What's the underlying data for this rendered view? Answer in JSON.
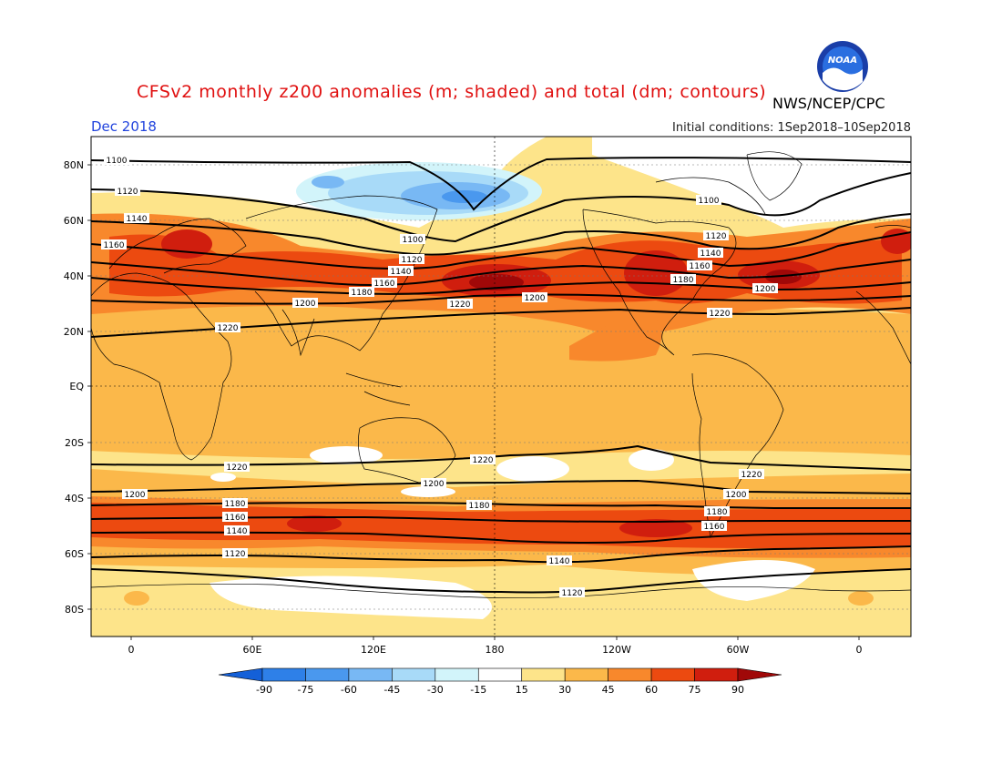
{
  "title": "CFSv2 monthly z200 anomalies (m; shaded) and total (dm; contours)",
  "agency": "NWS/NCEP/CPC",
  "logo_text": "NOAA",
  "month": "Dec 2018",
  "initial_conditions": "Initial conditions: 1Sep2018–10Sep2018",
  "lat_labels": [
    "80N",
    "60N",
    "40N",
    "20N",
    "EQ",
    "20S",
    "40S",
    "60S",
    "80S"
  ],
  "lon_labels": [
    "0",
    "60E",
    "120E",
    "180",
    "120W",
    "60W",
    "0"
  ],
  "colorbar": {
    "labels": [
      "-90",
      "-75",
      "-60",
      "-45",
      "-30",
      "-15",
      "15",
      "30",
      "45",
      "60",
      "75",
      "90"
    ],
    "colors": [
      "#1460d8",
      "#2e80e8",
      "#4a98ee",
      "#78b8f4",
      "#a8daf8",
      "#d2f4fa",
      "#ffffff",
      "#fde48a",
      "#fbb84a",
      "#f8882c",
      "#ec4a10",
      "#d01e0e",
      "#a00808"
    ]
  },
  "contours": [
    {
      "value": "1100"
    },
    {
      "value": "1120"
    },
    {
      "value": "1140"
    },
    {
      "value": "1160"
    },
    {
      "value": "1180"
    },
    {
      "value": "1200"
    },
    {
      "value": "1220"
    }
  ]
}
